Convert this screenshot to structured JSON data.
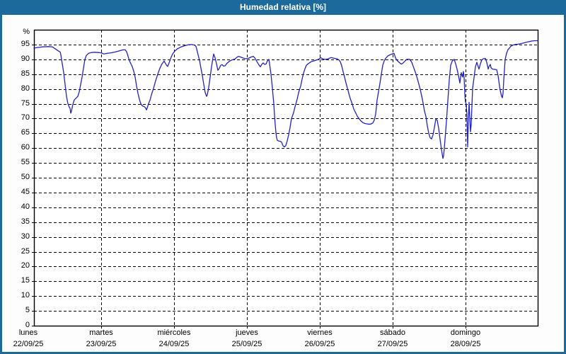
{
  "window": {
    "title": "Humedad relativa [%]"
  },
  "colors": {
    "titlebar_bg": "#1c6a9c",
    "titlebar_text": "#ffffff",
    "frame_border": "#1c6a9c",
    "plot_background": "#ffffff",
    "grid": "#000000",
    "axis": "#000000",
    "series_line": "#2121c8",
    "label_text": "#000000"
  },
  "chart_data": {
    "type": "line",
    "title": "Humedad relativa [%]",
    "grid": "dashed",
    "legend": "none",
    "ylabel": "%",
    "xlabel": "",
    "ylim": [
      0,
      100
    ],
    "y_axis": {
      "unit_label": "%",
      "tick_step": 5,
      "ticks": [
        0,
        5,
        10,
        15,
        20,
        25,
        30,
        35,
        40,
        45,
        50,
        55,
        60,
        65,
        70,
        75,
        80,
        85,
        90,
        95
      ]
    },
    "x_axis": {
      "days": [
        {
          "name": "lunes",
          "date": "22/09/25"
        },
        {
          "name": "martes",
          "date": "23/09/25"
        },
        {
          "name": "miércoles",
          "date": "24/09/25"
        },
        {
          "name": "jueves",
          "date": "25/09/25"
        },
        {
          "name": "viernes",
          "date": "26/09/25"
        },
        {
          "name": "sábado",
          "date": "27/09/25"
        },
        {
          "name": "domingo",
          "date": "28/09/25"
        }
      ]
    },
    "series": [
      {
        "name": "Humedad relativa",
        "color": "#2121c8",
        "x_unit": "days_from_monday_00h",
        "points": [
          [
            0.078,
            93.8
          ],
          [
            0.126,
            94.0
          ],
          [
            0.194,
            94.2
          ],
          [
            0.272,
            94.3
          ],
          [
            0.33,
            94.2
          ],
          [
            0.369,
            93.6
          ],
          [
            0.408,
            92.9
          ],
          [
            0.437,
            92.5
          ],
          [
            0.447,
            91.5
          ],
          [
            0.466,
            88.5
          ],
          [
            0.485,
            85.5
          ],
          [
            0.505,
            81.5
          ],
          [
            0.524,
            77.5
          ],
          [
            0.544,
            75.0
          ],
          [
            0.563,
            73.8
          ],
          [
            0.573,
            73.5
          ],
          [
            0.583,
            71.8
          ],
          [
            0.592,
            72.5
          ],
          [
            0.612,
            74.8
          ],
          [
            0.631,
            76.3
          ],
          [
            0.66,
            77.0
          ],
          [
            0.68,
            77.5
          ],
          [
            0.699,
            79.0
          ],
          [
            0.718,
            81.5
          ],
          [
            0.738,
            84.0
          ],
          [
            0.757,
            87.0
          ],
          [
            0.777,
            90.0
          ],
          [
            0.796,
            91.3
          ],
          [
            0.825,
            92.0
          ],
          [
            0.864,
            92.3
          ],
          [
            0.913,
            92.4
          ],
          [
            0.961,
            92.3
          ],
          [
            1.0,
            92.2
          ],
          [
            1.039,
            91.8
          ],
          [
            1.078,
            92.0
          ],
          [
            1.136,
            92.2
          ],
          [
            1.194,
            92.5
          ],
          [
            1.252,
            92.9
          ],
          [
            1.301,
            93.2
          ],
          [
            1.33,
            93.2
          ],
          [
            1.35,
            92.5
          ],
          [
            1.369,
            91.0
          ],
          [
            1.388,
            89.5
          ],
          [
            1.408,
            88.5
          ],
          [
            1.427,
            87.5
          ],
          [
            1.447,
            86.0
          ],
          [
            1.466,
            84.0
          ],
          [
            1.485,
            81.0
          ],
          [
            1.505,
            78.5
          ],
          [
            1.524,
            76.5
          ],
          [
            1.544,
            75.0
          ],
          [
            1.563,
            74.3
          ],
          [
            1.592,
            74.0
          ],
          [
            1.612,
            73.5
          ],
          [
            1.621,
            72.9
          ],
          [
            1.631,
            73.5
          ],
          [
            1.65,
            75.0
          ],
          [
            1.67,
            76.2
          ],
          [
            1.689,
            78.0
          ],
          [
            1.718,
            80.2
          ],
          [
            1.748,
            82.8
          ],
          [
            1.777,
            85.0
          ],
          [
            1.806,
            87.0
          ],
          [
            1.835,
            88.5
          ],
          [
            1.864,
            89.4
          ],
          [
            1.883,
            88.6
          ],
          [
            1.903,
            87.8
          ],
          [
            1.913,
            87.6
          ],
          [
            1.932,
            88.8
          ],
          [
            1.961,
            90.8
          ],
          [
            1.981,
            91.8
          ],
          [
            2.01,
            92.8
          ],
          [
            2.049,
            93.6
          ],
          [
            2.097,
            94.2
          ],
          [
            2.146,
            94.6
          ],
          [
            2.194,
            94.9
          ],
          [
            2.243,
            95.0
          ],
          [
            2.282,
            94.8
          ],
          [
            2.301,
            94.4
          ],
          [
            2.311,
            93.5
          ],
          [
            2.33,
            91.5
          ],
          [
            2.35,
            89.5
          ],
          [
            2.369,
            87.0
          ],
          [
            2.388,
            84.5
          ],
          [
            2.408,
            81.5
          ],
          [
            2.427,
            78.8
          ],
          [
            2.447,
            77.5
          ],
          [
            2.456,
            78.0
          ],
          [
            2.476,
            80.5
          ],
          [
            2.495,
            84.0
          ],
          [
            2.515,
            87.5
          ],
          [
            2.534,
            90.5
          ],
          [
            2.544,
            91.8
          ],
          [
            2.563,
            90.5
          ],
          [
            2.583,
            88.5
          ],
          [
            2.602,
            86.3
          ],
          [
            2.621,
            87.0
          ],
          [
            2.641,
            88.0
          ],
          [
            2.66,
            88.2
          ],
          [
            2.68,
            87.7
          ],
          [
            2.699,
            87.8
          ],
          [
            2.728,
            88.7
          ],
          [
            2.757,
            89.3
          ],
          [
            2.796,
            89.8
          ],
          [
            2.835,
            90.1
          ],
          [
            2.864,
            90.7
          ],
          [
            2.883,
            91.0
          ],
          [
            2.913,
            90.8
          ],
          [
            2.951,
            90.4
          ],
          [
            2.981,
            90.2
          ],
          [
            3.019,
            90.3
          ],
          [
            3.058,
            90.8
          ],
          [
            3.087,
            91.0
          ],
          [
            3.107,
            90.5
          ],
          [
            3.126,
            89.7
          ],
          [
            3.146,
            88.9
          ],
          [
            3.165,
            88.1
          ],
          [
            3.184,
            87.5
          ],
          [
            3.204,
            88.3
          ],
          [
            3.223,
            88.8
          ],
          [
            3.243,
            88.3
          ],
          [
            3.262,
            88.4
          ],
          [
            3.282,
            89.5
          ],
          [
            3.301,
            90.0
          ],
          [
            3.311,
            88.5
          ],
          [
            3.33,
            85.0
          ],
          [
            3.35,
            80.0
          ],
          [
            3.359,
            77.5
          ],
          [
            3.369,
            75.0
          ],
          [
            3.379,
            71.0
          ],
          [
            3.388,
            68.0
          ],
          [
            3.398,
            65.2
          ],
          [
            3.408,
            63.5
          ],
          [
            3.417,
            62.6
          ],
          [
            3.437,
            62.4
          ],
          [
            3.456,
            62.3
          ],
          [
            3.476,
            62.0
          ],
          [
            3.495,
            60.8
          ],
          [
            3.515,
            60.4
          ],
          [
            3.534,
            60.9
          ],
          [
            3.553,
            62.5
          ],
          [
            3.573,
            64.5
          ],
          [
            3.592,
            67.0
          ],
          [
            3.612,
            70.0
          ],
          [
            3.641,
            72.0
          ],
          [
            3.66,
            74.0
          ],
          [
            3.689,
            76.5
          ],
          [
            3.709,
            78.7
          ],
          [
            3.738,
            81.0
          ],
          [
            3.757,
            83.3
          ],
          [
            3.777,
            85.3
          ],
          [
            3.796,
            86.8
          ],
          [
            3.816,
            88.0
          ],
          [
            3.845,
            88.6
          ],
          [
            3.883,
            89.2
          ],
          [
            3.922,
            89.5
          ],
          [
            3.961,
            89.8
          ],
          [
            3.99,
            90.1
          ],
          [
            4.01,
            90.6
          ],
          [
            4.029,
            90.3
          ],
          [
            4.049,
            90.1
          ],
          [
            4.078,
            90.0
          ],
          [
            4.107,
            90.1
          ],
          [
            4.136,
            90.4
          ],
          [
            4.155,
            90.6
          ],
          [
            4.175,
            90.5
          ],
          [
            4.204,
            90.3
          ],
          [
            4.233,
            90.2
          ],
          [
            4.262,
            89.8
          ],
          [
            4.282,
            89.2
          ],
          [
            4.301,
            87.8
          ],
          [
            4.32,
            85.8
          ],
          [
            4.34,
            84.0
          ],
          [
            4.359,
            82.0
          ],
          [
            4.379,
            80.3
          ],
          [
            4.398,
            78.5
          ],
          [
            4.417,
            76.8
          ],
          [
            4.447,
            74.8
          ],
          [
            4.466,
            73.2
          ],
          [
            4.495,
            71.8
          ],
          [
            4.515,
            70.8
          ],
          [
            4.544,
            69.8
          ],
          [
            4.563,
            69.2
          ],
          [
            4.592,
            68.6
          ],
          [
            4.621,
            68.3
          ],
          [
            4.66,
            68.1
          ],
          [
            4.699,
            68.1
          ],
          [
            4.728,
            68.5
          ],
          [
            4.748,
            69.5
          ],
          [
            4.767,
            71.5
          ],
          [
            4.786,
            76.3
          ],
          [
            4.806,
            79.0
          ],
          [
            4.825,
            81.9
          ],
          [
            4.845,
            85.0
          ],
          [
            4.864,
            88.0
          ],
          [
            4.883,
            89.4
          ],
          [
            4.903,
            90.3
          ],
          [
            4.932,
            91.1
          ],
          [
            4.961,
            91.5
          ],
          [
            4.99,
            91.8
          ],
          [
            5.019,
            92.0
          ],
          [
            5.039,
            90.5
          ],
          [
            5.058,
            89.7
          ],
          [
            5.087,
            89.0
          ],
          [
            5.117,
            88.4
          ],
          [
            5.136,
            88.6
          ],
          [
            5.165,
            89.3
          ],
          [
            5.194,
            90.0
          ],
          [
            5.233,
            90.0
          ],
          [
            5.262,
            89.0
          ],
          [
            5.291,
            87.0
          ],
          [
            5.32,
            85.0
          ],
          [
            5.35,
            82.5
          ],
          [
            5.379,
            79.8
          ],
          [
            5.408,
            76.5
          ],
          [
            5.437,
            72.5
          ],
          [
            5.456,
            70.7
          ],
          [
            5.476,
            67.5
          ],
          [
            5.495,
            65.0
          ],
          [
            5.515,
            63.5
          ],
          [
            5.534,
            63.1
          ],
          [
            5.553,
            64.5
          ],
          [
            5.573,
            67.0
          ],
          [
            5.592,
            69.8
          ],
          [
            5.612,
            69.4
          ],
          [
            5.631,
            66.7
          ],
          [
            5.65,
            63.0
          ],
          [
            5.67,
            59.5
          ],
          [
            5.689,
            56.5
          ],
          [
            5.699,
            57.5
          ],
          [
            5.709,
            60.0
          ],
          [
            5.718,
            63.0
          ],
          [
            5.738,
            69.0
          ],
          [
            5.757,
            76.0
          ],
          [
            5.777,
            83.0
          ],
          [
            5.796,
            88.0
          ],
          [
            5.816,
            89.3
          ],
          [
            5.845,
            90.0
          ],
          [
            5.864,
            88.5
          ],
          [
            5.883,
            86.8
          ],
          [
            5.903,
            84.5
          ],
          [
            5.922,
            82.0
          ],
          [
            5.932,
            84.0
          ],
          [
            5.942,
            85.5
          ],
          [
            5.951,
            84.5
          ],
          [
            5.961,
            84.0
          ],
          [
            5.971,
            85.9
          ],
          [
            5.981,
            84.0
          ],
          [
            5.99,
            78.0
          ],
          [
            6.0,
            75.5
          ],
          [
            6.01,
            74.8
          ],
          [
            6.019,
            71.0
          ],
          [
            6.029,
            60.4
          ],
          [
            6.039,
            69.0
          ],
          [
            6.049,
            75.5
          ],
          [
            6.058,
            70.5
          ],
          [
            6.068,
            65.5
          ],
          [
            6.078,
            68.0
          ],
          [
            6.097,
            80.2
          ],
          [
            6.117,
            84.0
          ],
          [
            6.136,
            87.5
          ],
          [
            6.155,
            89.0
          ],
          [
            6.175,
            87.5
          ],
          [
            6.184,
            86.7
          ],
          [
            6.204,
            88.5
          ],
          [
            6.223,
            89.8
          ],
          [
            6.243,
            90.2
          ],
          [
            6.272,
            90.3
          ],
          [
            6.291,
            89.0
          ],
          [
            6.311,
            86.7
          ],
          [
            6.32,
            87.5
          ],
          [
            6.34,
            88.3
          ],
          [
            6.35,
            87.2
          ],
          [
            6.369,
            86.7
          ],
          [
            6.398,
            86.6
          ],
          [
            6.427,
            86.5
          ],
          [
            6.447,
            84.5
          ],
          [
            6.466,
            81.0
          ],
          [
            6.476,
            79.5
          ],
          [
            6.495,
            77.5
          ],
          [
            6.505,
            77.0
          ],
          [
            6.515,
            78.5
          ],
          [
            6.524,
            83.0
          ],
          [
            6.534,
            86.5
          ],
          [
            6.544,
            90.0
          ],
          [
            6.563,
            92.0
          ],
          [
            6.583,
            93.3
          ],
          [
            6.602,
            93.8
          ],
          [
            6.621,
            94.4
          ],
          [
            6.65,
            94.8
          ],
          [
            6.68,
            95.0
          ],
          [
            6.718,
            95.1
          ],
          [
            6.757,
            95.3
          ],
          [
            6.796,
            95.5
          ],
          [
            6.835,
            95.8
          ],
          [
            6.874,
            96.0
          ],
          [
            6.913,
            96.2
          ],
          [
            6.951,
            96.3
          ],
          [
            6.99,
            96.3
          ]
        ]
      }
    ]
  }
}
